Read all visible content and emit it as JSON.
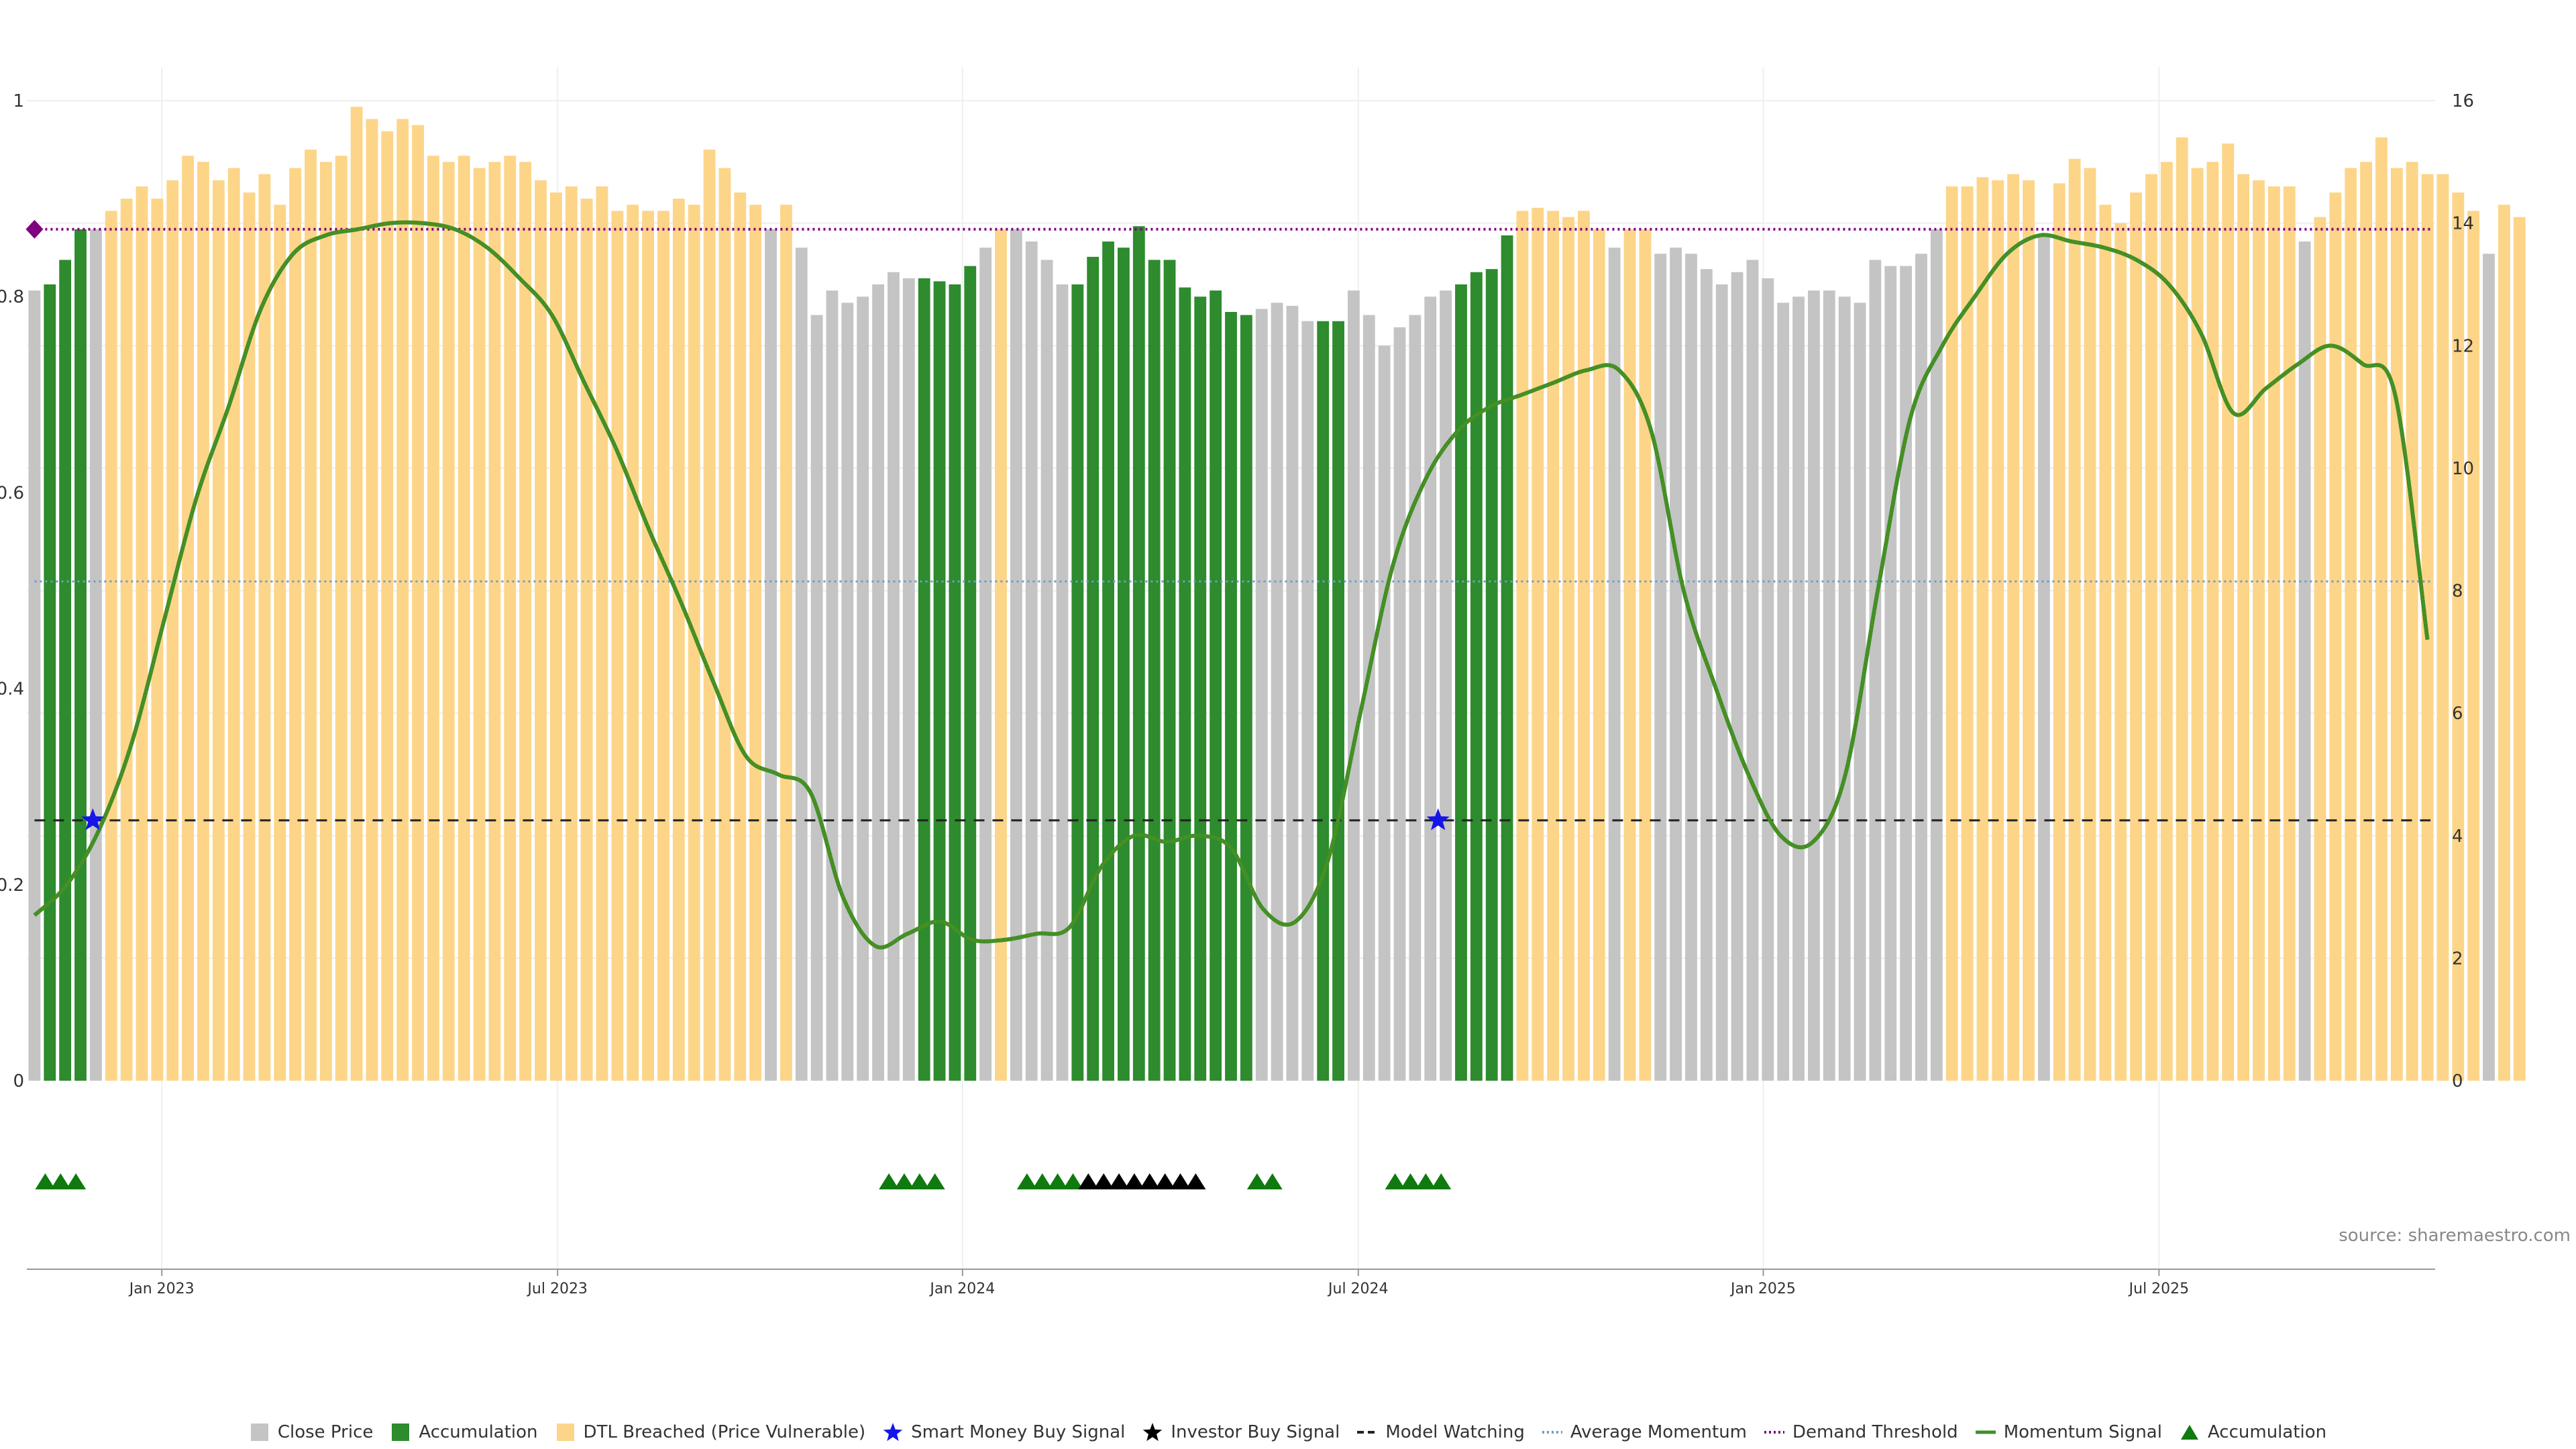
{
  "colors": {
    "close_price": "#c4c4c4",
    "accumulation": "#2e8b2e",
    "dtl_breached": "#fdd589",
    "smart_money": "#1515e8",
    "investor": "#000000",
    "model_watching": "#222222",
    "average_momentum": "#6d9ec6",
    "demand_threshold": "#800080",
    "momentum_signal": "#3f8f2a",
    "accum_marker": "#0f7a0f"
  },
  "chart_data": {
    "type": "bar",
    "title": "",
    "xlabel": "",
    "ylabel": "",
    "left_axis": {
      "ylim": [
        0,
        1
      ],
      "ticks": [
        "0",
        "0.2",
        "0.4",
        "0.6",
        "0.8",
        "1"
      ],
      "tick_values": [
        0,
        0.2,
        0.4,
        0.6,
        0.8,
        1
      ]
    },
    "right_axis": {
      "ylim": [
        0,
        16
      ],
      "ticks": [
        "0",
        "2",
        "4",
        "6",
        "8",
        "10",
        "12",
        "14",
        "16"
      ],
      "tick_values": [
        0,
        2,
        4,
        6,
        8,
        10,
        12,
        14,
        16
      ]
    },
    "x_axis": {
      "range_weeks": [
        0,
        157
      ],
      "ticks": [
        {
          "label": "Jan 2023",
          "week": 8.8
        },
        {
          "label": "Jul 2023",
          "week": 34.6
        },
        {
          "label": "Jan 2024",
          "week": 61.0
        },
        {
          "label": "Jul 2024",
          "week": 86.8
        },
        {
          "label": "Jan 2025",
          "week": 113.2
        },
        {
          "label": "Jul 2025",
          "week": 139.0
        }
      ]
    },
    "bar_segments": [
      [
        "C",
        1,
        12.9
      ],
      [
        "A",
        1,
        13.0
      ],
      [
        "A",
        1,
        13.4
      ],
      [
        "A",
        1,
        13.9
      ],
      [
        "C",
        1,
        13.9
      ],
      [
        "D",
        30,
        [
          14.2,
          14.4,
          14.6,
          14.4,
          14.7,
          15.1,
          15.0,
          14.7,
          14.9,
          14.5,
          14.8,
          14.3,
          14.9,
          15.2,
          15.0,
          15.1,
          15.9,
          15.7,
          15.5,
          15.7,
          15.6,
          15.1,
          15.0,
          15.1,
          14.9,
          15.0,
          15.1,
          15.0,
          14.7,
          14.5
        ]
      ],
      [
        "D",
        10,
        [
          14.6,
          14.4,
          14.6,
          14.2,
          14.3,
          14.2,
          14.2,
          14.4,
          14.3,
          15.2
        ]
      ],
      [
        "D",
        3,
        [
          14.9,
          14.5,
          14.3
        ]
      ],
      [
        "C",
        1,
        13.9
      ],
      [
        "D",
        1,
        14.3
      ],
      [
        "C",
        8,
        [
          13.6,
          12.5,
          12.9,
          12.7,
          12.8,
          13.0,
          13.2,
          13.1
        ]
      ],
      [
        "A",
        4,
        [
          13.1,
          13.05,
          13.0,
          13.3
        ]
      ],
      [
        "C",
        1,
        13.6
      ],
      [
        "D",
        1,
        13.9
      ],
      [
        "C",
        4,
        [
          13.9,
          13.7,
          13.4,
          13.0
        ]
      ],
      [
        "A",
        9,
        [
          13.0,
          13.45,
          13.7,
          13.6,
          13.95,
          13.4,
          13.4,
          12.95,
          12.8
        ]
      ],
      [
        "A",
        3,
        [
          12.9,
          12.55,
          12.5
        ]
      ],
      [
        "C",
        4,
        [
          12.6,
          12.7,
          12.65,
          12.4
        ]
      ],
      [
        "A",
        2,
        [
          12.4,
          12.4
        ]
      ],
      [
        "C",
        7,
        [
          12.9,
          12.5,
          12.0,
          12.3,
          12.5,
          12.8,
          12.9
        ]
      ],
      [
        "A",
        4,
        [
          13.0,
          13.2,
          13.25,
          13.8
        ]
      ],
      [
        "D",
        6,
        [
          14.2,
          14.25,
          14.2,
          14.1,
          14.2,
          13.9
        ]
      ],
      [
        "C",
        1,
        13.6
      ],
      [
        "D",
        2,
        [
          13.9,
          13.9
        ]
      ],
      [
        "C",
        19,
        [
          13.5,
          13.6,
          13.5,
          13.25,
          13.0,
          13.2,
          13.4,
          13.1,
          12.7,
          12.8,
          12.9,
          12.9,
          12.8,
          12.7,
          13.4,
          13.3,
          13.3,
          13.5,
          13.9
        ]
      ],
      [
        "D",
        6,
        [
          14.6,
          14.6,
          14.75,
          14.7,
          14.8,
          14.7
        ]
      ],
      [
        "C",
        1,
        13.8
      ],
      [
        "D",
        13,
        [
          14.65,
          15.05,
          14.9,
          14.3,
          14.0,
          14.5,
          14.8,
          15.0,
          15.4,
          14.9,
          15.0,
          15.3,
          14.8
        ]
      ],
      [
        "D",
        3,
        [
          14.7,
          14.6,
          14.6
        ]
      ],
      [
        "C",
        1,
        13.7
      ],
      [
        "D",
        3,
        [
          14.1,
          14.5,
          14.9
        ]
      ],
      [
        "D",
        8,
        [
          15.0,
          15.4,
          14.9,
          15.0,
          14.8,
          14.8,
          14.5,
          14.2
        ]
      ],
      [
        "C",
        1,
        13.5
      ],
      [
        "D",
        2,
        [
          14.3,
          14.1
        ]
      ]
    ],
    "series": [
      {
        "name": "Momentum Signal",
        "axis": "right",
        "x_start_week": 0.5,
        "x_end_week": 156.5,
        "values": [
          2.7,
          3.2,
          4.1,
          5.5,
          7.5,
          9.5,
          11.0,
          12.6,
          13.5,
          13.8,
          13.9,
          14.0,
          14.0,
          13.9,
          13.6,
          13.1,
          12.5,
          11.4,
          10.3,
          9.0,
          7.8,
          6.5,
          5.3,
          5.0,
          4.7,
          3.0,
          2.2,
          2.4,
          2.6,
          2.3,
          2.3,
          2.4,
          2.5,
          3.5,
          4.0,
          3.9,
          4.0,
          3.8,
          2.8,
          2.6,
          3.6,
          6.0,
          8.4,
          9.8,
          10.6,
          11.0,
          11.2,
          11.4,
          11.6,
          11.6,
          10.6,
          8.0,
          6.4,
          5.0,
          4.0,
          3.9,
          5.0,
          8.0,
          10.8,
          12.0,
          12.8,
          13.5,
          13.8,
          13.7,
          13.6,
          13.4,
          13.0,
          12.2,
          10.9,
          11.3,
          11.7,
          12.0,
          11.7,
          11.2,
          7.2
        ]
      },
      {
        "name": "Demand Threshold",
        "axis": "right",
        "value": 13.9
      },
      {
        "name": "Average Momentum",
        "axis": "right",
        "value": 8.15
      },
      {
        "name": "Model Watching",
        "axis": "right",
        "value": 4.25
      }
    ],
    "signals": {
      "smart_money_buy": [
        {
          "week": 4.3,
          "value": 4.25
        },
        {
          "week": 92.0,
          "value": 4.25
        }
      ],
      "demand_threshold_marker": {
        "week": 0.5,
        "value": 13.9
      }
    },
    "accumulation_markers": [
      1.2,
      2.2,
      3.2,
      56.2,
      57.2,
      58.2,
      59.2,
      65.2,
      66.2,
      67.2,
      68.2,
      80.2,
      81.2,
      89.2,
      90.2,
      91.2,
      92.2
    ],
    "investor_markers": [
      69.2,
      70.2,
      71.2,
      72.2,
      73.2,
      74.2,
      75.2,
      76.2
    ],
    "legend": [
      {
        "label": "Close Price",
        "symbol": "square",
        "color_key": "close_price"
      },
      {
        "label": "Accumulation",
        "symbol": "square",
        "color_key": "accumulation"
      },
      {
        "label": "DTL Breached (Price Vulnerable)",
        "symbol": "square",
        "color_key": "dtl_breached"
      },
      {
        "label": "Smart Money Buy Signal",
        "symbol": "star",
        "color_key": "smart_money"
      },
      {
        "label": "Investor Buy Signal",
        "symbol": "star",
        "color_key": "investor"
      },
      {
        "label": "Model Watching",
        "symbol": "dashed",
        "color_key": "model_watching"
      },
      {
        "label": "Average Momentum",
        "symbol": "dotted",
        "color_key": "average_momentum"
      },
      {
        "label": "Demand Threshold",
        "symbol": "dotted",
        "color_key": "demand_threshold"
      },
      {
        "label": "Momentum Signal",
        "symbol": "line",
        "color_key": "momentum_signal"
      },
      {
        "label": "Accumulation",
        "symbol": "triangle",
        "color_key": "accum_marker"
      }
    ]
  },
  "source": "source: sharemaestro.com"
}
